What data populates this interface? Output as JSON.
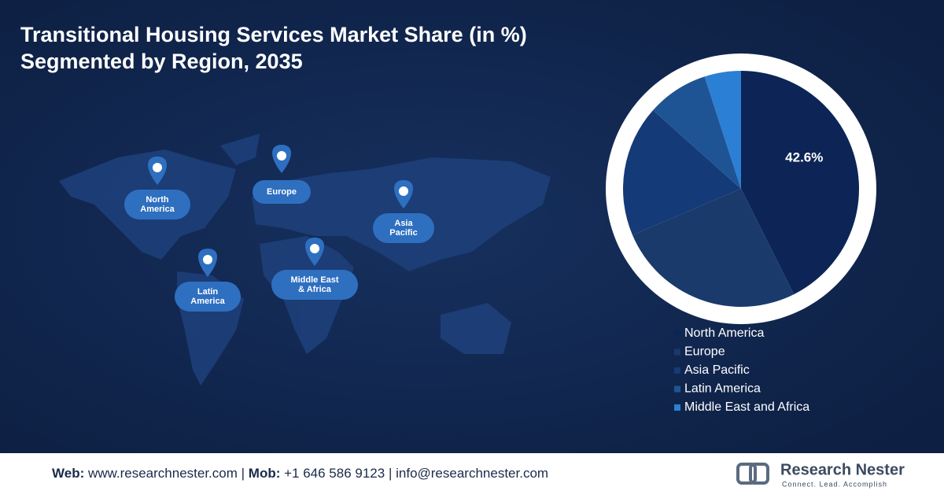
{
  "chart_data": {
    "type": "pie",
    "title": "Transitional Housing Services Market Share (in %)",
    "subtitle": "Segmented by Region, 2035",
    "series": [
      {
        "name": "North America",
        "color": "#0c2556",
        "values": [
          42.6
        ]
      },
      {
        "name": "Europe",
        "color": "#1a3a6b",
        "values": [
          26
        ]
      },
      {
        "name": "Asia Pacific",
        "color": "#143a78",
        "values": [
          18
        ]
      },
      {
        "name": "Latin America",
        "color": "#1f5494",
        "values": [
          8.4
        ]
      },
      {
        "name": "Middle East and Africa",
        "color": "#2b7fd4",
        "values": [
          5
        ]
      }
    ],
    "value_labels": [
      "42.6%",
      null,
      null,
      null,
      null
    ]
  },
  "map_labels": [
    "North America",
    "Europe",
    "Asia Pacific",
    "Latin America",
    "Middle East & Africa"
  ],
  "footer": {
    "web_label": "Web:",
    "web": "www.researchnester.com",
    "mob_label": "Mob:",
    "mob": "+1 646 586 9123",
    "email": "info@researchnester.com"
  },
  "logo": {
    "name": "Research Nester",
    "tagline": "Connect. Lead. Accomplish"
  }
}
